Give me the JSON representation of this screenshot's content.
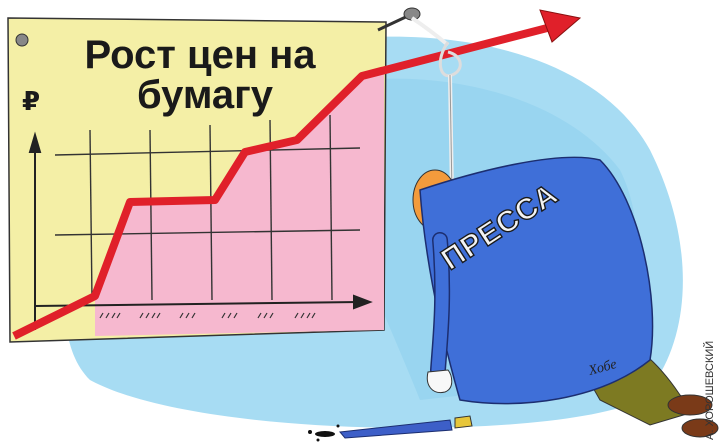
{
  "poster": {
    "title_lines": [
      "Рост цен на",
      "бумагу"
    ],
    "axis_symbol": "₽"
  },
  "jacket_text": "ПРЕССА",
  "signature": "Хобе",
  "credit": "А. ХОРОШЕВСКИЙ"
}
